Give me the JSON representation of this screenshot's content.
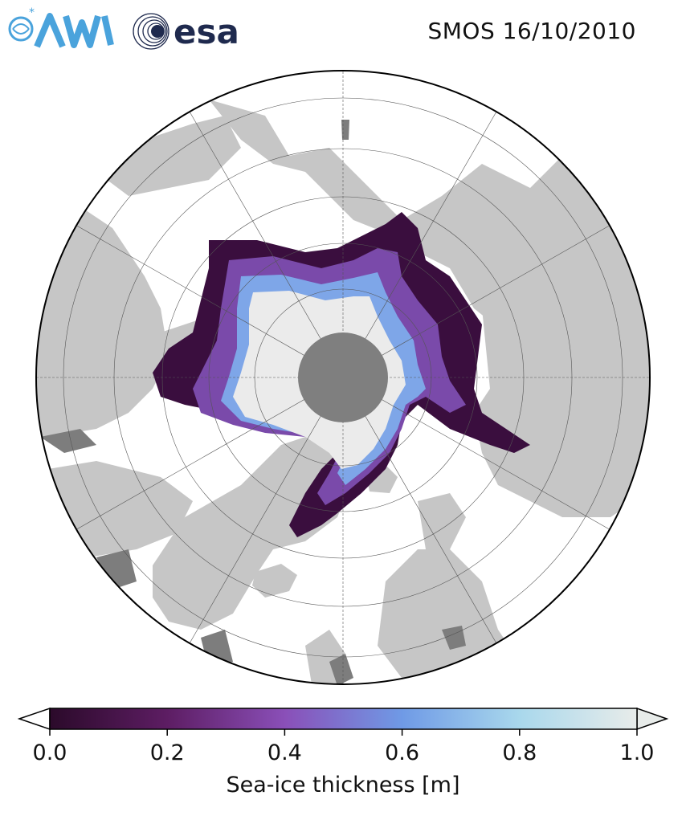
{
  "header": {
    "title": "SMOS 16/10/2010",
    "logo_awi_name": "AWI",
    "logo_esa_text": "esa"
  },
  "map": {
    "projection": "north-polar-stereographic",
    "pole_hole_color": "#7f7f7f",
    "land_color": "#c6c6c6",
    "dark_land_color": "#7d7d7d",
    "ocean_color": "#ffffff",
    "thick_ice_color": "#ebebeb",
    "grid": true
  },
  "colorbar": {
    "label": "Sea-ice thickness [m]",
    "min": 0.0,
    "max": 1.0,
    "ticks": [
      "0.0",
      "0.2",
      "0.4",
      "0.6",
      "0.8",
      "1.0"
    ],
    "tick_values": [
      0.0,
      0.2,
      0.4,
      0.6,
      0.8,
      1.0
    ],
    "extend": "both",
    "colors": [
      "#2b0a2a",
      "#5d1d63",
      "#8a4fb8",
      "#6f9ae6",
      "#a9d8ec",
      "#e8ecea"
    ]
  }
}
